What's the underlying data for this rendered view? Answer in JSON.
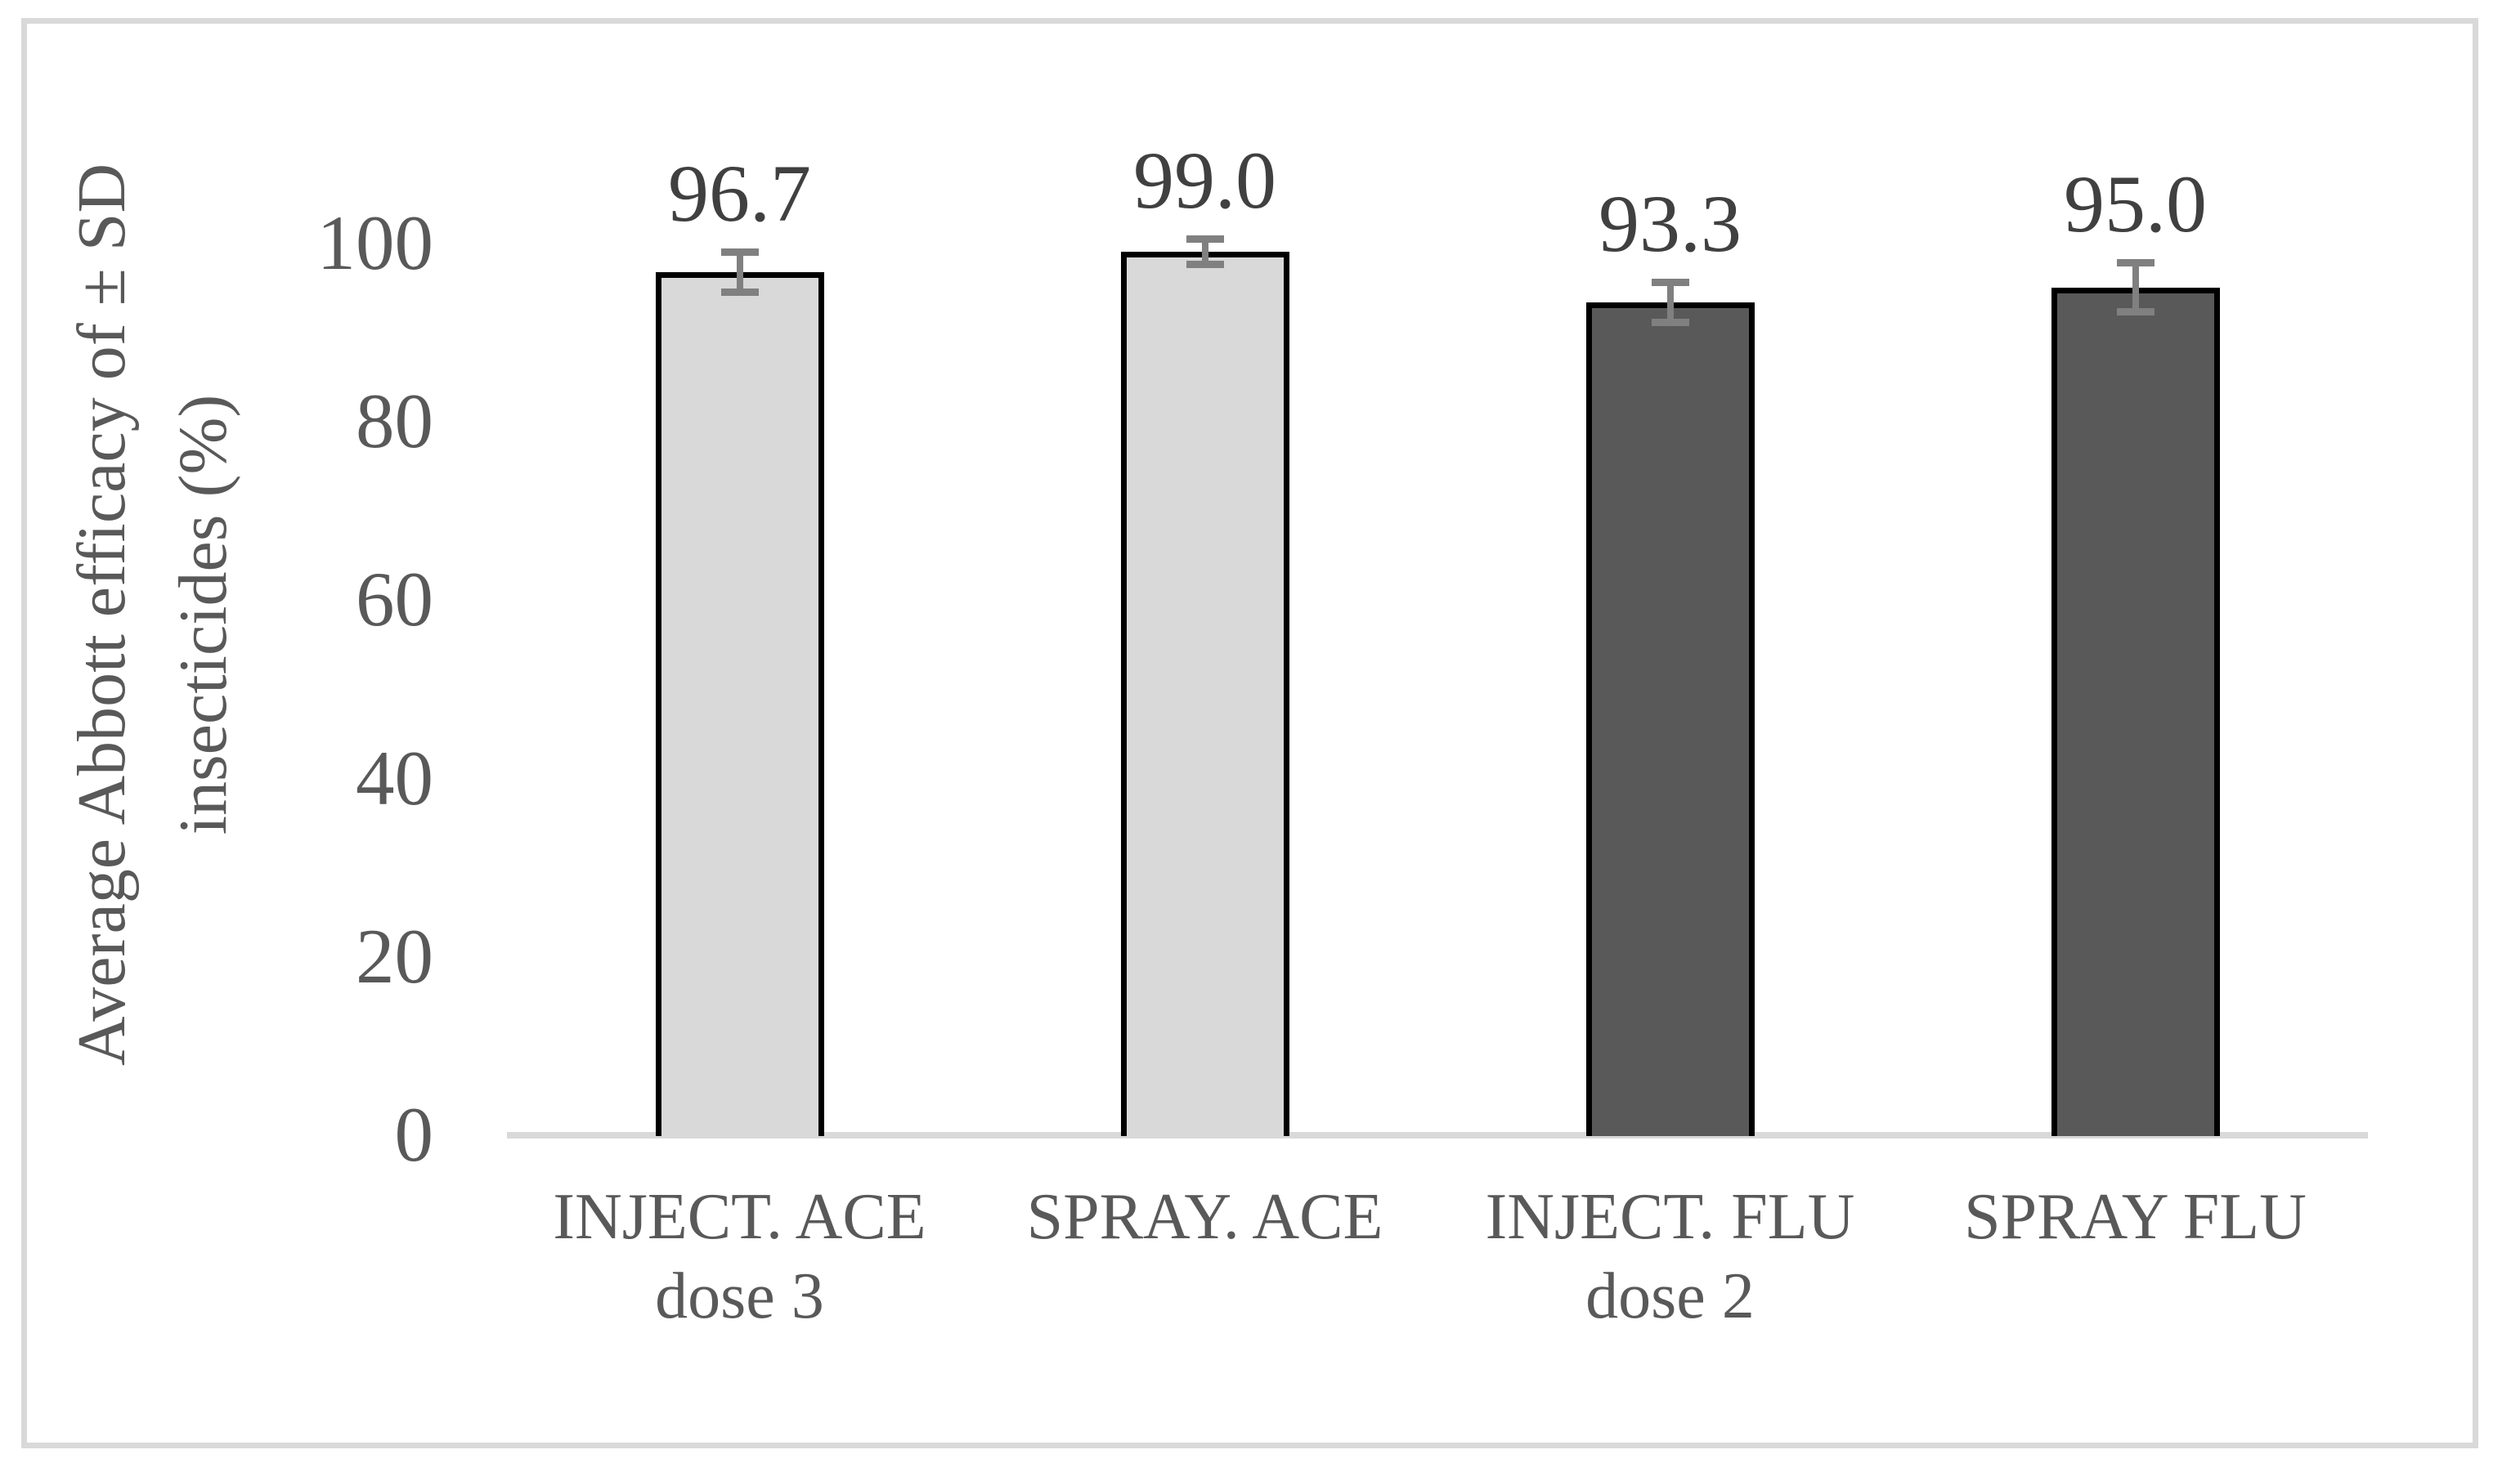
{
  "figure": {
    "background_color": "#ffffff",
    "frame_color": "#d9d9d9"
  },
  "chart_data": {
    "type": "bar",
    "title": "",
    "ylabel_line1": "Average Abbott efficacy of ± SD",
    "ylabel_line2": "insecticides (%)",
    "xlabel": "",
    "ylim": [
      0,
      100
    ],
    "yticks": [
      "0",
      "20",
      "40",
      "60",
      "80",
      "100"
    ],
    "grid": false,
    "legend_position": "none",
    "categories": [
      {
        "line1": "INJECT. ACE",
        "line2": "dose 3"
      },
      {
        "line1": "SPRAY. ACE",
        "line2": ""
      },
      {
        "line1": "INJECT. FLU",
        "line2": "dose 2"
      },
      {
        "line1": "SPRAY FLU",
        "line2": ""
      }
    ],
    "values": [
      96.7,
      99.0,
      93.3,
      95.0
    ],
    "value_labels": [
      "96.7",
      "99.0",
      "93.3",
      "95.0"
    ],
    "error_sd": [
      2.3,
      1.5,
      2.3,
      2.8
    ],
    "bar_colors": [
      "#d9d9d9",
      "#d9d9d9",
      "#595959",
      "#595959"
    ],
    "bar_border_color": "#000000",
    "error_bar_color": "#808080",
    "axis_line_color": "#d9d9d9",
    "axis_text_color": "#595959",
    "value_label_color": "#404040"
  }
}
